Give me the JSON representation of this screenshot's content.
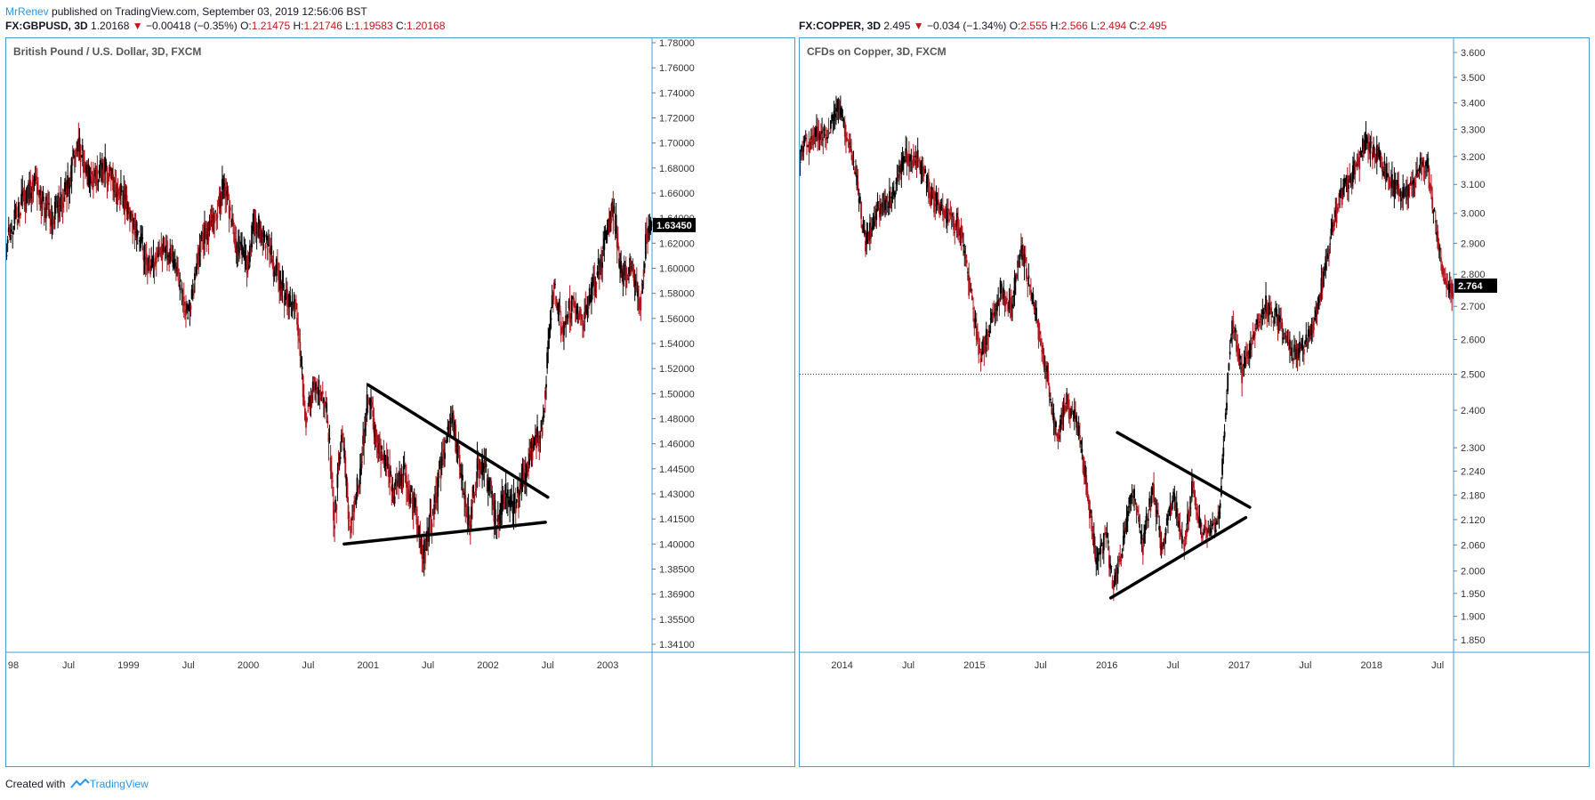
{
  "header": {
    "author": "MrRenev",
    "published": " published on TradingView.com, September 03, 2019 12:56:06 BST"
  },
  "footer": {
    "created_with": "Created with",
    "brand": "TradingView"
  },
  "colors": {
    "up": "#000000",
    "down": "#b5121b",
    "border": "#3f9fd9",
    "accent": "#2196f3"
  },
  "icons": {
    "down_arrow": "triangle-down-icon",
    "logo": "tradingview-logo-icon"
  },
  "chart_data": [
    {
      "type": "candlestick",
      "symbol": "FX:GBPUSD, 3D",
      "ohlc": {
        "last": "1.20168",
        "change": "−0.00418 (−0.35%)",
        "o": "1.21475",
        "h": "1.21746",
        "l": "1.19583",
        "c": "1.20168"
      },
      "title": "British Pound / U.S. Dollar, 3D, FXCM",
      "y_ticks": [
        "1.78000",
        "1.76000",
        "1.74000",
        "1.72000",
        "1.70000",
        "1.68000",
        "1.66000",
        "1.64000",
        "1.62000",
        "1.60000",
        "1.58000",
        "1.56000",
        "1.54000",
        "1.52000",
        "1.50000",
        "1.48000",
        "1.46000",
        "1.44500",
        "1.43000",
        "1.41500",
        "1.40000",
        "1.38500",
        "1.36900",
        "1.35500",
        "1.34100"
      ],
      "x_ticks": [
        {
          "label": "98",
          "year": 1998.85
        },
        {
          "label": "Jul",
          "year": 1998.5
        },
        {
          "label": "1999",
          "year": 1999.0
        },
        {
          "label": "Jul",
          "year": 1999.5
        },
        {
          "label": "2000",
          "year": 2000.0
        },
        {
          "label": "Jul",
          "year": 2000.5
        },
        {
          "label": "2001",
          "year": 2001.0
        },
        {
          "label": "Jul",
          "year": 2001.5
        },
        {
          "label": "2002",
          "year": 2002.0
        },
        {
          "label": "Jul",
          "year": 2002.5
        },
        {
          "label": "2003",
          "year": 2003.0
        }
      ],
      "last_price_label": "1.63450",
      "last_price": 1.6345,
      "path": [
        [
          1997.98,
          1.62
        ],
        [
          1998.1,
          1.65
        ],
        [
          1998.22,
          1.67
        ],
        [
          1998.35,
          1.64
        ],
        [
          1998.48,
          1.66
        ],
        [
          1998.58,
          1.7
        ],
        [
          1998.68,
          1.67
        ],
        [
          1998.8,
          1.68
        ],
        [
          1998.95,
          1.66
        ],
        [
          1999.1,
          1.62
        ],
        [
          1999.2,
          1.6
        ],
        [
          1999.3,
          1.62
        ],
        [
          1999.4,
          1.6
        ],
        [
          1999.5,
          1.56
        ],
        [
          1999.6,
          1.62
        ],
        [
          1999.72,
          1.64
        ],
        [
          1999.8,
          1.67
        ],
        [
          1999.9,
          1.62
        ],
        [
          2000.0,
          1.6
        ],
        [
          2000.05,
          1.64
        ],
        [
          2000.15,
          1.62
        ],
        [
          2000.3,
          1.58
        ],
        [
          2000.4,
          1.57
        ],
        [
          2000.48,
          1.48
        ],
        [
          2000.55,
          1.51
        ],
        [
          2000.65,
          1.49
        ],
        [
          2000.72,
          1.41
        ],
        [
          2000.78,
          1.47
        ],
        [
          2000.85,
          1.41
        ],
        [
          2000.95,
          1.45
        ],
        [
          2001.0,
          1.5
        ],
        [
          2001.08,
          1.46
        ],
        [
          2001.15,
          1.45
        ],
        [
          2001.22,
          1.43
        ],
        [
          2001.3,
          1.44
        ],
        [
          2001.4,
          1.42
        ],
        [
          2001.45,
          1.39
        ],
        [
          2001.52,
          1.41
        ],
        [
          2001.62,
          1.45
        ],
        [
          2001.7,
          1.48
        ],
        [
          2001.78,
          1.44
        ],
        [
          2001.85,
          1.41
        ],
        [
          2001.92,
          1.45
        ],
        [
          2002.0,
          1.44
        ],
        [
          2002.08,
          1.41
        ],
        [
          2002.15,
          1.43
        ],
        [
          2002.22,
          1.42
        ],
        [
          2002.3,
          1.44
        ],
        [
          2002.38,
          1.46
        ],
        [
          2002.45,
          1.47
        ],
        [
          2002.5,
          1.53
        ],
        [
          2002.55,
          1.59
        ],
        [
          2002.62,
          1.55
        ],
        [
          2002.7,
          1.57
        ],
        [
          2002.8,
          1.56
        ],
        [
          2002.9,
          1.59
        ],
        [
          2002.98,
          1.62
        ],
        [
          2003.05,
          1.65
        ],
        [
          2003.12,
          1.59
        ],
        [
          2003.2,
          1.6
        ],
        [
          2003.27,
          1.57
        ],
        [
          2003.33,
          1.63
        ]
      ],
      "triangle": [
        {
          "from": [
            2000.8,
            1.4
          ],
          "to": [
            2002.48,
            1.413
          ]
        },
        {
          "from": [
            2001.0,
            1.507
          ],
          "to": [
            2002.5,
            1.428
          ]
        }
      ]
    },
    {
      "type": "candlestick",
      "symbol": "FX:COPPER, 3D",
      "ohlc": {
        "last": "2.495",
        "change": "−0.034 (−1.34%)",
        "o": "2.555",
        "h": "2.566",
        "l": "2.494",
        "c": "2.495"
      },
      "title": "CFDs on Copper, 3D, FXCM",
      "y_ticks": [
        "3.600",
        "3.500",
        "3.400",
        "3.300",
        "3.200",
        "3.100",
        "3.000",
        "2.900",
        "2.800",
        "2.700",
        "2.600",
        "2.500",
        "2.400",
        "2.300",
        "2.240",
        "2.180",
        "2.120",
        "2.060",
        "2.000",
        "1.950",
        "1.900",
        "1.850"
      ],
      "x_ticks": [
        {
          "label": "2014",
          "year": 2014.0
        },
        {
          "label": "Jul",
          "year": 2014.5
        },
        {
          "label": "2015",
          "year": 2015.0
        },
        {
          "label": "Jul",
          "year": 2015.5
        },
        {
          "label": "2016",
          "year": 2016.0
        },
        {
          "label": "Jul",
          "year": 2016.5
        },
        {
          "label": "2017",
          "year": 2017.0
        },
        {
          "label": "Jul",
          "year": 2017.5
        },
        {
          "label": "2018",
          "year": 2018.0
        },
        {
          "label": "Jul",
          "year": 2018.5
        }
      ],
      "last_price_label": "2.764",
      "last_price": 2.764,
      "reference_price": 2.5,
      "path": [
        [
          2013.68,
          3.22
        ],
        [
          2013.8,
          3.28
        ],
        [
          2013.9,
          3.3
        ],
        [
          2013.98,
          3.38
        ],
        [
          2014.08,
          3.18
        ],
        [
          2014.18,
          2.9
        ],
        [
          2014.28,
          3.02
        ],
        [
          2014.38,
          3.05
        ],
        [
          2014.48,
          3.2
        ],
        [
          2014.58,
          3.18
        ],
        [
          2014.68,
          3.05
        ],
        [
          2014.78,
          3.0
        ],
        [
          2014.9,
          2.95
        ],
        [
          2014.98,
          2.7
        ],
        [
          2015.05,
          2.55
        ],
        [
          2015.12,
          2.65
        ],
        [
          2015.2,
          2.75
        ],
        [
          2015.28,
          2.7
        ],
        [
          2015.35,
          2.88
        ],
        [
          2015.45,
          2.7
        ],
        [
          2015.55,
          2.5
        ],
        [
          2015.62,
          2.33
        ],
        [
          2015.7,
          2.42
        ],
        [
          2015.78,
          2.35
        ],
        [
          2015.85,
          2.2
        ],
        [
          2015.92,
          2.02
        ],
        [
          2016.0,
          2.08
        ],
        [
          2016.05,
          1.95
        ],
        [
          2016.12,
          2.06
        ],
        [
          2016.2,
          2.2
        ],
        [
          2016.27,
          2.05
        ],
        [
          2016.35,
          2.2
        ],
        [
          2016.42,
          2.04
        ],
        [
          2016.5,
          2.18
        ],
        [
          2016.58,
          2.05
        ],
        [
          2016.65,
          2.2
        ],
        [
          2016.72,
          2.08
        ],
        [
          2016.78,
          2.1
        ],
        [
          2016.85,
          2.12
        ],
        [
          2016.9,
          2.4
        ],
        [
          2016.95,
          2.65
        ],
        [
          2017.02,
          2.5
        ],
        [
          2017.1,
          2.6
        ],
        [
          2017.2,
          2.7
        ],
        [
          2017.3,
          2.65
        ],
        [
          2017.4,
          2.55
        ],
        [
          2017.5,
          2.58
        ],
        [
          2017.6,
          2.7
        ],
        [
          2017.7,
          2.95
        ],
        [
          2017.8,
          3.1
        ],
        [
          2017.88,
          3.15
        ],
        [
          2017.95,
          3.25
        ],
        [
          2018.05,
          3.2
        ],
        [
          2018.15,
          3.1
        ],
        [
          2018.25,
          3.05
        ],
        [
          2018.35,
          3.15
        ],
        [
          2018.42,
          3.18
        ],
        [
          2018.47,
          3.0
        ],
        [
          2018.52,
          2.85
        ],
        [
          2018.58,
          2.76
        ]
      ],
      "triangle": [
        {
          "from": [
            2016.03,
            1.94
          ],
          "to": [
            2017.05,
            2.125
          ]
        },
        {
          "from": [
            2016.08,
            2.34
          ],
          "to": [
            2017.08,
            2.15
          ]
        }
      ]
    }
  ]
}
